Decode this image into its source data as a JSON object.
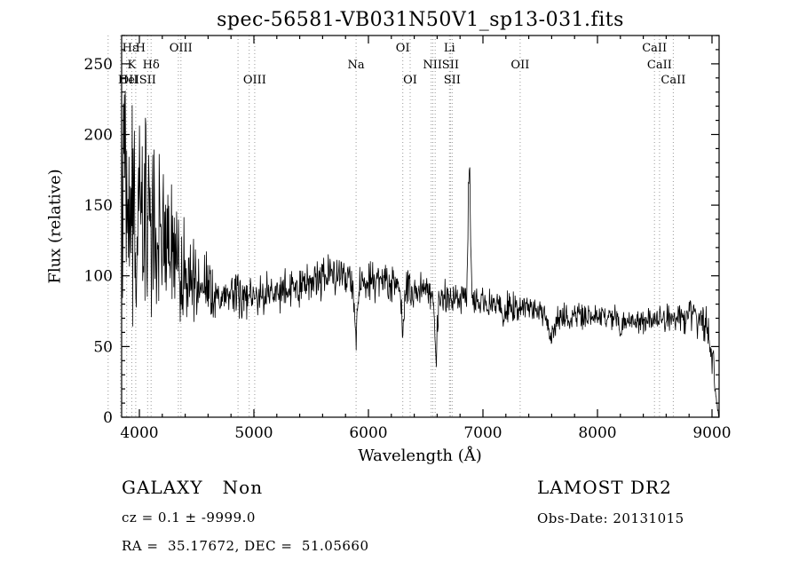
{
  "chart_data": {
    "type": "line",
    "title": "spec-56581-VB031N50V1_sp13-031.fits",
    "xlabel": "Wavelength (Å)",
    "ylabel": "Flux (relative)",
    "xlim": [
      3845,
      9062
    ],
    "ylim": [
      0,
      270
    ],
    "xticks": [
      4000,
      5000,
      6000,
      7000,
      8000,
      9000
    ],
    "yticks": [
      0,
      50,
      100,
      150,
      200,
      250
    ],
    "x_minor_step": 200,
    "y_minor_step": 10,
    "grid": false,
    "legend": "none",
    "line_color": "#000000",
    "feature_line_color": "#999999",
    "sample_step": 4,
    "seed": 20131015,
    "envelope": {
      "x": [
        3845,
        3900,
        3950,
        4000,
        4050,
        4100,
        4150,
        4200,
        4250,
        4300,
        4350,
        4400,
        4500,
        4600,
        4700,
        4800,
        4900,
        5000,
        5100,
        5200,
        5300,
        5400,
        5500,
        5600,
        5700,
        5800,
        5900,
        6000,
        6100,
        6200,
        6300,
        6400,
        6500,
        6600,
        6700,
        6800,
        6900,
        7000,
        7100,
        7200,
        7300,
        7400,
        7500,
        7600,
        7700,
        7800,
        7900,
        8000,
        8100,
        8200,
        8300,
        8400,
        8500,
        8600,
        8700,
        8800,
        8900,
        8950,
        9000,
        9040,
        9062
      ],
      "flux": [
        150,
        152,
        150,
        148,
        143,
        140,
        135,
        125,
        118,
        112,
        108,
        103,
        95,
        92,
        88,
        86,
        86,
        86,
        87,
        88,
        90,
        93,
        96,
        99,
        101,
        102,
        97,
        96,
        97,
        95,
        92,
        90,
        88,
        86,
        85,
        84,
        83,
        81,
        80,
        78,
        77,
        76,
        74,
        72,
        72,
        72,
        71,
        71,
        70,
        69,
        68,
        68,
        69,
        70,
        71,
        72,
        70,
        65,
        45,
        10,
        0
      ],
      "sigma": [
        65,
        60,
        58,
        55,
        50,
        48,
        45,
        38,
        34,
        30,
        28,
        24,
        18,
        14,
        12,
        11,
        10,
        10,
        10,
        10,
        10,
        10,
        10,
        10,
        10,
        10,
        10,
        10,
        9,
        9,
        9,
        8,
        8,
        8,
        8,
        8,
        8,
        7,
        7,
        7,
        7,
        6,
        6,
        6,
        6,
        6,
        6,
        6,
        6,
        6,
        6,
        6,
        7,
        7,
        8,
        8,
        9,
        10,
        10,
        5,
        0
      ]
    },
    "features": [
      {
        "center": 5892,
        "width": 15,
        "amp": -38
      },
      {
        "center": 6300,
        "width": 12,
        "amp": -32
      },
      {
        "center": 6590,
        "width": 12,
        "amp": -40
      },
      {
        "center": 6880,
        "width": 10,
        "amp": 92
      },
      {
        "center": 7180,
        "width": 12,
        "amp": -12
      },
      {
        "center": 7600,
        "width": 30,
        "amp": -14
      },
      {
        "center": 8200,
        "width": 15,
        "amp": -8
      }
    ],
    "line_wavelengths": [
      3727,
      3835,
      3889,
      3933,
      3968,
      4072,
      4102,
      4340,
      4363,
      4861,
      4959,
      5007,
      5892,
      6300,
      6364,
      6548,
      6563,
      6583,
      6708,
      6716,
      6731,
      7325,
      8498,
      8542,
      8662
    ],
    "line_labels": [
      {
        "text": "Hε",
        "wl": 3920,
        "row": 0
      },
      {
        "text": "H",
        "wl": 4010,
        "row": 0
      },
      {
        "text": "OIII",
        "wl": 4363,
        "row": 0
      },
      {
        "text": "OI",
        "wl": 6300,
        "row": 0
      },
      {
        "text": "Li",
        "wl": 6708,
        "row": 0
      },
      {
        "text": "CaII",
        "wl": 8498,
        "row": 0
      },
      {
        "text": "K",
        "wl": 3933,
        "row": 1
      },
      {
        "text": "Hδ",
        "wl": 4102,
        "row": 1
      },
      {
        "text": "Na",
        "wl": 5892,
        "row": 1
      },
      {
        "text": "NII",
        "wl": 6560,
        "row": 1
      },
      {
        "text": "SII",
        "wl": 6716,
        "row": 1
      },
      {
        "text": "OII",
        "wl": 7325,
        "row": 1
      },
      {
        "text": "CaII",
        "wl": 8542,
        "row": 1
      },
      {
        "text": "OII",
        "wl": 3727,
        "row": 2
      },
      {
        "text": "HeI",
        "wl": 3860,
        "row": 2
      },
      {
        "text": "SII",
        "wl": 4072,
        "row": 2
      },
      {
        "text": "OIII",
        "wl": 5007,
        "row": 2
      },
      {
        "text": "OI",
        "wl": 6364,
        "row": 2
      },
      {
        "text": "SII",
        "wl": 6731,
        "row": 2
      },
      {
        "text": "CaII",
        "wl": 8662,
        "row": 2
      }
    ]
  },
  "footer": {
    "class_label": "GALAXY   Non",
    "survey": "LAMOST DR2",
    "cz": "cz = 0.1 ± -9999.0",
    "obs_date": "Obs-Date: 20131015",
    "ra_dec": "RA =  35.17672, DEC =  51.05660"
  }
}
